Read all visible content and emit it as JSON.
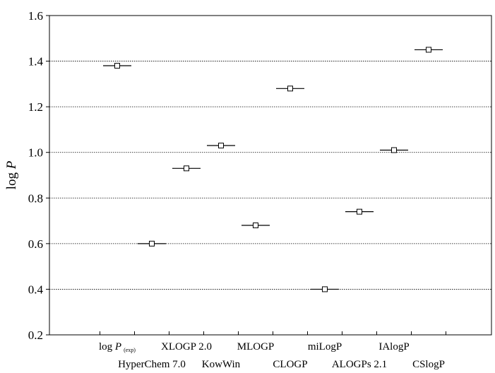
{
  "chart_data": {
    "type": "scatter",
    "title": "",
    "xlabel": "",
    "ylabel": {
      "main": "log ",
      "italic": "P"
    },
    "ylim": [
      0.2,
      1.6
    ],
    "yticks": [
      "0.2",
      "0.4",
      "0.6",
      "0.8",
      "1.0",
      "1.2",
      "1.4",
      "1.6"
    ],
    "grid": "horizontal dotted at 0.4, 0.6, 0.8, 1.0, 1.2, 1.4",
    "categories": [
      {
        "main": "log ",
        "italic": "P",
        "sub": "(exp)",
        "row": 1
      },
      {
        "main": "HyperChem 7.0",
        "row": 2
      },
      {
        "main": "XLOGP 2.0",
        "row": 1
      },
      {
        "main": "KowWin",
        "row": 2
      },
      {
        "main": "MLOGP",
        "row": 1
      },
      {
        "main": "CLOGP",
        "row": 2
      },
      {
        "main": "miLogP",
        "row": 1
      },
      {
        "main": "ALOGPs 2.1",
        "row": 2
      },
      {
        "main": "IAlogP",
        "row": 1
      },
      {
        "main": "CSlogP",
        "row": 2
      }
    ],
    "values": [
      1.38,
      0.6,
      0.93,
      1.03,
      0.68,
      1.28,
      0.4,
      0.74,
      1.01,
      1.45
    ]
  }
}
